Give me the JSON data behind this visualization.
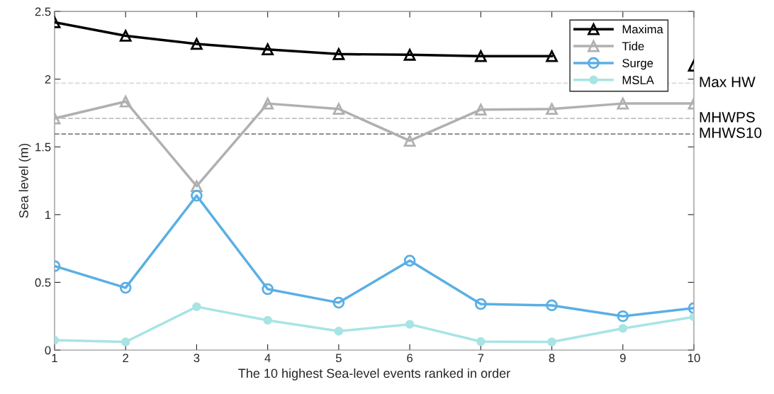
{
  "chart_data": {
    "type": "line",
    "xlabel": "The 10 highest Sea-level events ranked in order",
    "ylabel": "Sea level (m)",
    "x": [
      1,
      2,
      3,
      4,
      5,
      6,
      7,
      8,
      9,
      10
    ],
    "series": [
      {
        "name": "Maxima",
        "color": "#000000",
        "marker": "triangle",
        "values": [
          2.42,
          2.32,
          2.26,
          2.22,
          2.185,
          2.18,
          2.17,
          2.17,
          null,
          2.1
        ]
      },
      {
        "name": "Tide",
        "color": "#b0b0b0",
        "marker": "triangle",
        "values": [
          1.71,
          1.835,
          1.21,
          1.82,
          1.78,
          1.545,
          1.775,
          1.78,
          1.82,
          1.82
        ]
      },
      {
        "name": "Surge",
        "color": "#5aafe4",
        "marker": "circle",
        "values": [
          0.62,
          0.46,
          1.14,
          0.45,
          0.35,
          0.66,
          0.34,
          0.33,
          0.25,
          0.31
        ]
      },
      {
        "name": "MSLA",
        "color": "#a8e4e4",
        "marker": "dot",
        "values": [
          0.073,
          0.06,
          0.32,
          0.22,
          0.14,
          0.19,
          0.063,
          0.06,
          0.16,
          0.245
        ]
      }
    ],
    "ref_lines": [
      {
        "axis": "y",
        "value": 1.97,
        "label": "Max HW",
        "color": "#d9d9d9",
        "line_style": "dashed"
      },
      {
        "axis": "y",
        "value": 1.71,
        "label": "MHWPS",
        "color": "#c0c0c0",
        "line_style": "dashed"
      },
      {
        "axis": "y",
        "value": 1.595,
        "label": "MHWS10",
        "color": "#808080",
        "line_style": "dashed"
      }
    ],
    "xlim": [
      1,
      10
    ],
    "xticks": [
      1,
      2,
      3,
      4,
      5,
      6,
      7,
      8,
      9,
      10
    ],
    "ylim": [
      0,
      2.5
    ],
    "yticks": [
      0,
      0.5,
      1,
      1.5,
      2,
      2.5
    ],
    "grid": false,
    "legend": "top right",
    "line_style": "solid"
  }
}
